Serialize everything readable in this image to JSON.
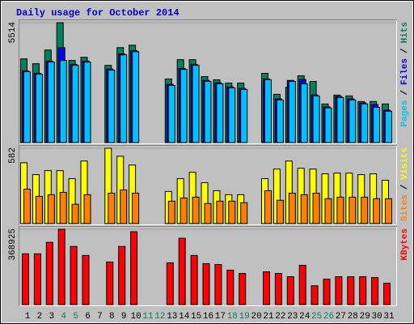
{
  "chart_data": {
    "type": "bar",
    "title": "Daily usage for October 2014",
    "categories": [
      "1",
      "2",
      "3",
      "4",
      "5",
      "6",
      "7",
      "8",
      "9",
      "10",
      "11",
      "12",
      "13",
      "14",
      "15",
      "16",
      "17",
      "18",
      "19",
      "20",
      "21",
      "22",
      "23",
      "24",
      "25",
      "26",
      "27",
      "28",
      "29",
      "30",
      "31"
    ],
    "weekend_categories": [
      "4",
      "5",
      "11",
      "12",
      "18",
      "19",
      "25",
      "26"
    ],
    "weekend_color": "#00805c",
    "legend_separator": "/",
    "panels": [
      {
        "ylim": [
          0,
          5514
        ],
        "yticks": [
          5514
        ],
        "series": [
          {
            "name": "Hits",
            "color": "#00805c",
            "values": [
              3848,
              3626,
              4255,
              5514,
              3774,
              3922,
              0,
              3552,
              4366,
              4477,
              0,
              0,
              2923,
              3811,
              3811,
              3034,
              2886,
              2738,
              2738,
              0,
              3182,
              2220,
              2553,
              3071,
              2812,
              1776,
              2183,
              2146,
              1887,
              1887,
              1776
            ]
          },
          {
            "name": "Files",
            "color": "#0000ff",
            "values": [
              3300,
              3190,
              3750,
              4366,
              3600,
              3750,
              0,
              3380,
              4080,
              4230,
              0,
              0,
              2680,
              3410,
              3600,
              2860,
              2750,
              2560,
              2490,
              0,
              2930,
              2010,
              2860,
              2900,
              2190,
              1640,
              2120,
              2010,
              1820,
              1750,
              1490
            ]
          },
          {
            "name": "Pages",
            "color": "#00c0ff",
            "values": [
              3256,
              3145,
              3700,
              3774,
              3552,
              3700,
              0,
              3330,
              4033,
              4181,
              0,
              0,
              2627,
              3367,
              3552,
              2812,
              2701,
              2516,
              2442,
              0,
              2886,
              1961,
              2812,
              2700,
              2146,
              1591,
              2072,
              1961,
              1776,
              1620,
              1443
            ]
          }
        ]
      },
      {
        "ylim": [
          0,
          582
        ],
        "yticks": [
          582
        ],
        "series": [
          {
            "name": "Visits",
            "color": "#ffff00",
            "values": [
              470,
              378,
              409,
              409,
              347,
              483,
              0,
              582,
              520,
              452,
              0,
              0,
              248,
              347,
              396,
              316,
              254,
              223,
              223,
              0,
              347,
              421,
              483,
              427,
              421,
              384,
              390,
              390,
              378,
              384,
              334
            ]
          },
          {
            "name": "Sites",
            "color": "#ff8000",
            "values": [
              266,
              210,
              223,
              241,
              149,
              223,
              0,
              235,
              260,
              235,
              0,
              0,
              173,
              198,
              204,
              155,
              173,
              173,
              161,
              0,
              254,
              180,
              235,
              223,
              235,
              192,
              204,
              204,
              204,
              192,
              192
            ]
          }
        ]
      },
      {
        "ylim": [
          0,
          368925
        ],
        "yticks": [
          368925
        ],
        "series": [
          {
            "name": "KBytes",
            "color": "#ff0000",
            "values": [
              248620,
              248620,
              304760,
              368925,
              284710,
              240600,
              0,
              208520,
              284710,
              356890,
              0,
              0,
              204510,
              324810,
              240600,
              200500,
              196490,
              168420,
              152380,
              0,
              160400,
              152380,
              136340,
              192480,
              92230,
              124310,
              136340,
              136340,
              136340,
              132330,
              104260
            ]
          }
        ]
      }
    ]
  }
}
